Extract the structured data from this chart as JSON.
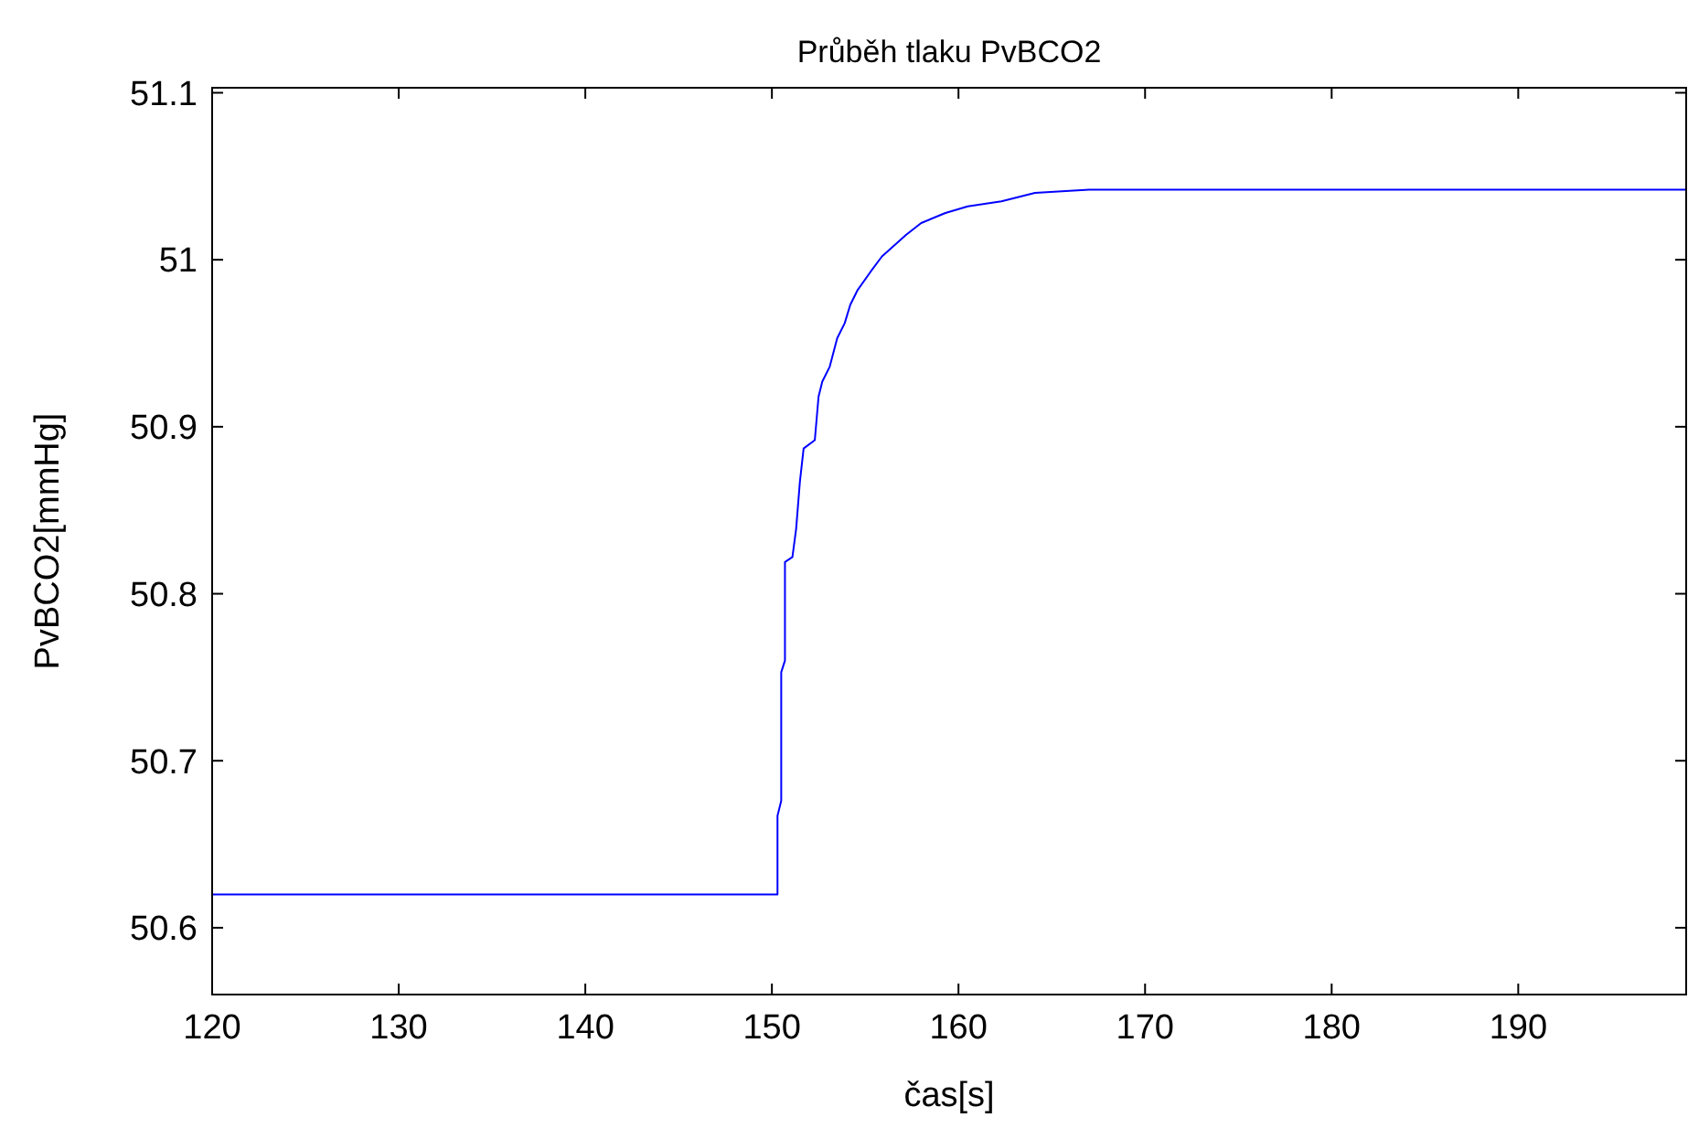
{
  "chart_data": {
    "type": "line",
    "title": "Průběh tlaku PvBCO2",
    "xlabel": "čas[s]",
    "ylabel": "PvBCO2[mmHg]",
    "x": [
      120,
      150.3,
      150.3,
      150.5,
      150.5,
      150.7,
      150.7,
      151.1,
      151.3,
      151.5,
      151.7,
      152.3,
      152.4,
      152.5,
      152.7,
      153.1,
      153.5,
      153.9,
      154.2,
      154.6,
      155.3,
      155.9,
      157.2,
      158.0,
      159.3,
      160.5,
      162.3,
      164.1,
      167.0,
      199
    ],
    "series": [
      {
        "color": "#0000ff",
        "values": [
          50.62,
          50.62,
          50.667,
          50.676,
          50.753,
          50.76,
          50.819,
          50.822,
          50.839,
          50.867,
          50.887,
          50.892,
          50.905,
          50.918,
          50.927,
          50.936,
          50.953,
          50.962,
          50.973,
          50.982,
          50.993,
          51.002,
          51.015,
          51.022,
          51.028,
          51.032,
          51.035,
          51.04,
          51.042,
          51.042
        ]
      }
    ],
    "xlim": [
      120,
      199
    ],
    "xticks": [
      120,
      130,
      140,
      150,
      160,
      170,
      180,
      190
    ],
    "ylim": [
      50.56,
      51.103
    ],
    "yticks": [
      50.6,
      50.7,
      50.8,
      50.9,
      51,
      51.1
    ],
    "grid": false,
    "marker": "none",
    "line_style": "solid"
  }
}
